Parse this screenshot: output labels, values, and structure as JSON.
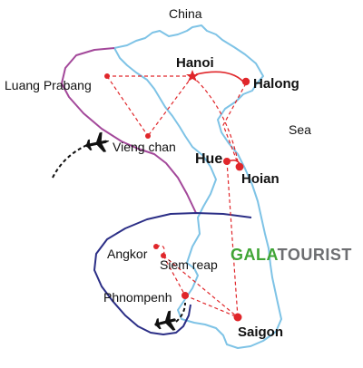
{
  "map": {
    "countries": {
      "china": "China",
      "sea": "Sea"
    },
    "cities": {
      "hanoi": "Hanoi",
      "halong": "Halong",
      "luang_prabang": "Luang Prabang",
      "vieng_chan": "Vieng chan",
      "hue": "Hue",
      "hoian": "Hoian",
      "angkor": "Angkor",
      "siem_reap": "Siem reap",
      "phnompenh": "Phnompenh",
      "saigon": "Saigon"
    },
    "brand": {
      "part1": "GALA",
      "part2": "TOURIST"
    },
    "colors": {
      "coastline": "#7ec3e6",
      "route": "#e0262a",
      "laos_border": "#a3489a",
      "cambodia_border": "#2b2e86",
      "brand_green": "#3fa535",
      "brand_gray": "#6d6e71",
      "plane": "#111111"
    },
    "icons": [
      "capital-star-icon",
      "city-dot-icon",
      "airplane-icon"
    ]
  }
}
